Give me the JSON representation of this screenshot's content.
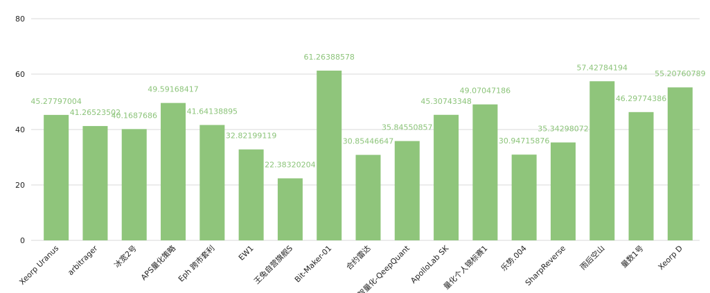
{
  "chart_data": {
    "type": "bar",
    "categories": [
      "Xeorp Uranus",
      "arbitrager",
      "冰宽2号",
      "APS量化策略",
      "Eph 跨市套利",
      "EW1",
      "王兔自营旗舰S",
      "Bit-Maker-01",
      "合约雷达",
      "智量化-QeepQuant",
      "ApolloLab SK",
      "量化个人锦标赛1",
      "乐势.004",
      "SharpReverse",
      "雨后空山",
      "量数1号",
      "Xeorp D"
    ],
    "values": [
      45.27797004,
      41.26523502,
      40.1687686,
      49.59168417,
      41.64138895,
      32.82199119,
      22.38320204,
      61.26388578,
      30.85446647,
      35.84550857,
      45.30743348,
      49.07047186,
      30.94715876,
      35.34298072,
      57.42784194,
      46.29774386,
      55.20760789
    ],
    "color": "#8fc57b",
    "ylim": [
      0,
      80
    ],
    "yticks": [
      0,
      20,
      40,
      60,
      80
    ],
    "grid": true
  }
}
